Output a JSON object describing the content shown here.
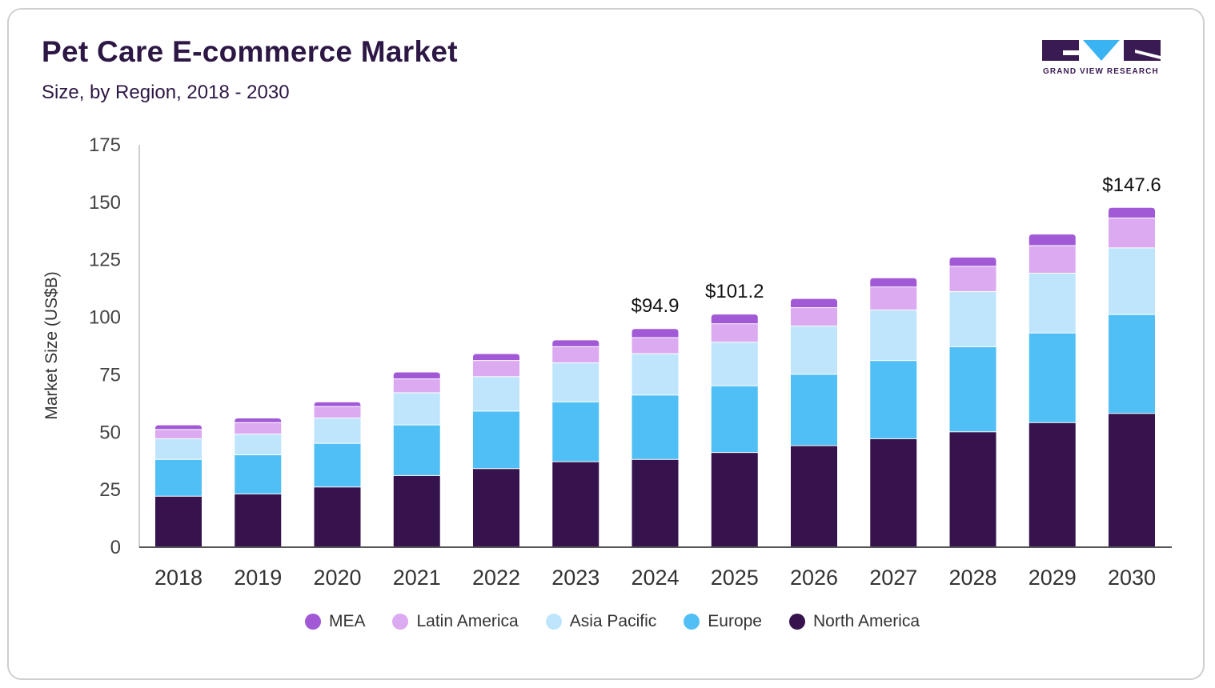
{
  "header": {
    "title": "Pet Care E-commerce Market",
    "subtitle": "Size, by Region, 2018 - 2030"
  },
  "logo": {
    "text": "GRAND VIEW RESEARCH"
  },
  "colors": {
    "mea": "#a159d6",
    "latin_america": "#dbaaf0",
    "asia_pacific": "#bfe5fd",
    "europe": "#4fbff5",
    "north_america": "#36134d",
    "logo_dark": "#3a1a52",
    "logo_accent": "#39b3f2"
  },
  "chart_data": {
    "type": "bar",
    "stacked": true,
    "title": "Pet Care E-commerce Market",
    "subtitle": "Size, by Region, 2018 - 2030",
    "xlabel": "",
    "ylabel": "Market Size (US$B)",
    "ylim": [
      0,
      175
    ],
    "yticks": [
      0,
      25,
      50,
      75,
      100,
      125,
      150,
      175
    ],
    "categories": [
      "2018",
      "2019",
      "2020",
      "2021",
      "2022",
      "2023",
      "2024",
      "2025",
      "2026",
      "2027",
      "2028",
      "2029",
      "2030"
    ],
    "series": [
      {
        "name": "North America",
        "color_key": "north_america",
        "values": [
          22,
          23,
          26,
          31,
          34,
          37,
          38,
          41,
          44,
          47,
          50,
          54,
          58
        ]
      },
      {
        "name": "Europe",
        "color_key": "europe",
        "values": [
          16,
          17,
          19,
          22,
          25,
          26,
          28,
          29,
          31,
          34,
          37,
          39,
          43
        ]
      },
      {
        "name": "Asia Pacific",
        "color_key": "asia_pacific",
        "values": [
          9,
          9,
          11,
          14,
          15,
          17,
          18,
          19,
          21,
          22,
          24,
          26,
          29
        ]
      },
      {
        "name": "Latin America",
        "color_key": "latin_america",
        "values": [
          4,
          5,
          5,
          6,
          7,
          7,
          7,
          8,
          8,
          10,
          11,
          12,
          13
        ]
      },
      {
        "name": "MEA",
        "color_key": "mea",
        "values": [
          2,
          2,
          2,
          3,
          3,
          3,
          3.9,
          4.2,
          4,
          4,
          4,
          5,
          4.6
        ]
      }
    ],
    "annotations": [
      {
        "category": "2024",
        "text": "$94.9"
      },
      {
        "category": "2025",
        "text": "$101.2"
      },
      {
        "category": "2030",
        "text": "$147.6"
      }
    ],
    "legend": {
      "position": "bottom",
      "entries": [
        "MEA",
        "Latin America",
        "Asia Pacific",
        "Europe",
        "North America"
      ]
    }
  }
}
